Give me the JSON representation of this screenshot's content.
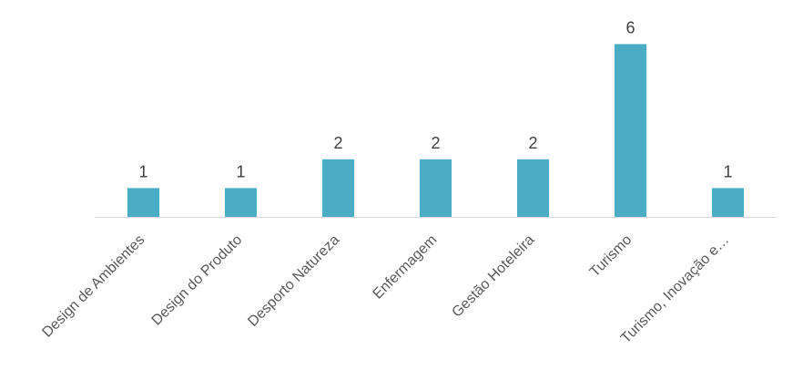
{
  "chart_data": {
    "type": "bar",
    "categories": [
      "Design de Ambientes",
      "Design do Produto",
      "Desporto Natureza",
      "Enfermagem",
      "Gestão Hoteleira",
      "Turismo",
      "Turismo, Inovação e…"
    ],
    "series": [
      {
        "values": [
          1,
          1,
          2,
          2,
          2,
          6,
          1
        ]
      }
    ],
    "data_labels": [
      "1",
      "1",
      "2",
      "2",
      "2",
      "6",
      "1"
    ],
    "ylim": [
      0,
      6
    ],
    "grid": false,
    "legend": "none",
    "bar_color": "#4BACC6",
    "axis_color": "#D9D9D9",
    "label_color": "#404040"
  }
}
